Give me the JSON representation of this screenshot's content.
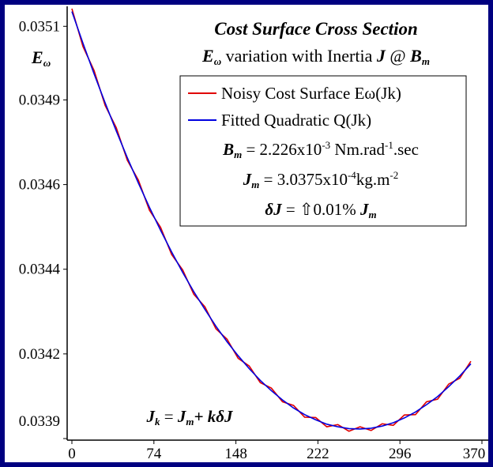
{
  "chart_data": {
    "type": "line",
    "title": "Cost Surface Cross Section",
    "subtitle": [
      "E",
      "ω",
      " variation with Inertia ",
      "J",
      " @ ",
      "B",
      "m"
    ],
    "y_label": [
      "E",
      "ω"
    ],
    "x": [
      0,
      10,
      20,
      30,
      40,
      50,
      60,
      70,
      80,
      90,
      100,
      110,
      120,
      130,
      140,
      150,
      160,
      170,
      180,
      190,
      200,
      210,
      220,
      230,
      240,
      250,
      260,
      270,
      280,
      290,
      300,
      310,
      320,
      330,
      340,
      350,
      360
    ],
    "series": [
      {
        "name": "Noisy Cost Surface Eω(Jk)",
        "color": "#e00000",
        "values": [
          0.035108,
          0.035005,
          0.03494,
          0.034845,
          0.034785,
          0.034696,
          0.034642,
          0.03456,
          0.034514,
          0.03444,
          0.034398,
          0.034332,
          0.034298,
          0.034238,
          0.03421,
          0.034158,
          0.034137,
          0.034092,
          0.034077,
          0.03404,
          0.03403,
          0.033998,
          0.033997,
          0.033972,
          0.033978,
          0.03396,
          0.033972,
          0.033962,
          0.03398,
          0.033976,
          0.034004,
          0.034005,
          0.03404,
          0.034047,
          0.034088,
          0.034104,
          0.03415
        ]
      },
      {
        "name": "Fitted Quadratic Q(Jk)",
        "color": "#0000e0",
        "values": [
          0.0351,
          0.035014,
          0.034931,
          0.034852,
          0.034776,
          0.034703,
          0.034634,
          0.034568,
          0.034506,
          0.034447,
          0.034391,
          0.034339,
          0.034291,
          0.034245,
          0.034203,
          0.034165,
          0.03413,
          0.034098,
          0.03407,
          0.034045,
          0.034023,
          0.034005,
          0.033991,
          0.033979,
          0.033972,
          0.033967,
          0.033966,
          0.033968,
          0.033974,
          0.033983,
          0.033996,
          0.034012,
          0.034032,
          0.034054,
          0.034081,
          0.03411,
          0.034143
        ]
      }
    ],
    "xlim": [
      0,
      370
    ],
    "xticks": [
      0,
      74,
      148,
      222,
      296,
      370
    ],
    "ylim": [
      0.03394,
      0.03511
    ],
    "yticks": [
      {
        "value": 0.03506,
        "label": "0.0351"
      },
      {
        "value": 0.03486,
        "label": "0.0349"
      },
      {
        "value": 0.03463,
        "label": "0.0346"
      },
      {
        "value": 0.0344,
        "label": "0.0344"
      },
      {
        "value": 0.03417,
        "label": "0.0342"
      },
      {
        "value": 0.03394,
        "label": "0.0339"
      }
    ],
    "annotations": [
      [
        "B",
        "m",
        " = 2.226x10",
        "-3",
        " Nm.rad",
        "-1",
        ".sec"
      ],
      [
        "J",
        "m",
        " = 3.0375x10",
        "-4",
        "kg.m",
        "-2"
      ],
      [
        "δJ",
        " = ",
        "⇧",
        "0.01% ",
        "J",
        "m"
      ],
      [
        "J",
        "k",
        " = ",
        "J",
        "m",
        "+ ",
        "k",
        "δJ"
      ]
    ]
  }
}
